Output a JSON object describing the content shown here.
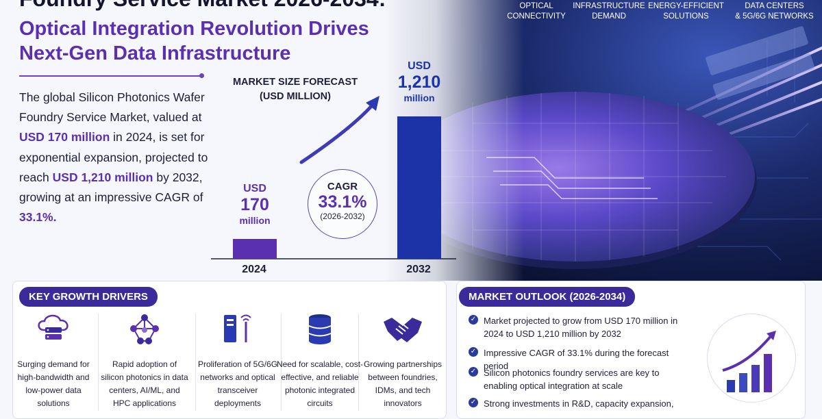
{
  "header": {
    "title_partial": "Foundry Service Market 2026-2034:",
    "subtitle": "Optical Integration Revolution Drives Next-Gen Data Infrastructure"
  },
  "topics": [
    {
      "line1": "OPTICAL",
      "line2": "CONNECTIVITY"
    },
    {
      "line1": "INFRASTRUCTURE",
      "line2": "DEMAND"
    },
    {
      "line1": "ENERGY-EFFICIENT",
      "line2": "SOLUTIONS"
    },
    {
      "line1": "DATA CENTERS",
      "line2": "& 5G/6G NETWORKS"
    }
  ],
  "intro": {
    "part1": "The global Silicon Photonics Wafer Foundry Service Market, valued at ",
    "hl1": "USD 170 million",
    "part2": " in 2024, is set for exponential expansion, projected to reach ",
    "hl2": "USD 1,210 million",
    "part3": " by 2032, growing at an impressive CAGR of ",
    "hl3": "33.1%.",
    "part4": ""
  },
  "chart_data": {
    "type": "bar",
    "title": "MARKET SIZE FORECAST (USD MILLION)",
    "categories": [
      "2024",
      "2032"
    ],
    "values": [
      170,
      1210
    ],
    "value_labels": [
      {
        "currency": "USD",
        "number": "170",
        "unit": "million"
      },
      {
        "currency": "USD",
        "number": "1,210",
        "unit": "million"
      }
    ],
    "colors": [
      "#5a2fb0",
      "#1c33a8"
    ],
    "cagr": {
      "label": "CAGR",
      "value": "33.1%",
      "period": "(2026-2032)"
    }
  },
  "drivers": {
    "heading": "KEY GROWTH DRIVERS",
    "items": [
      {
        "icon": "cloud-server-icon",
        "text": "Surging demand for high-bandwidth and low-power data solutions"
      },
      {
        "icon": "network-nodes-icon",
        "text": "Rapid adoption of silicon photonics in data centers, AI/ML, and HPC applications"
      },
      {
        "icon": "tower-antenna-icon",
        "text": "Proliferation of 5G/6G networks and optical transceiver deployments"
      },
      {
        "icon": "database-icon",
        "text": "Need for scalable, cost-effective, and reliable photonic integrated circuits"
      },
      {
        "icon": "handshake-icon",
        "text": "Growing partnerships between foundries, IDMs, and tech innovators"
      }
    ]
  },
  "outlook": {
    "heading": "MARKET OUTLOOK (2026-2034)",
    "items": [
      "Market projected to grow from USD 170 million in 2024 to USD 1,210 million by 2032",
      "Impressive CAGR of 33.1% during the forecast period",
      "Silicon photonics foundry services are key to enabling optical integration at scale",
      "Strong investments in R&D, capacity expansion,"
    ]
  },
  "colors": {
    "accent": "#5a2fb0",
    "navy": "#3a2a9a",
    "blue": "#1c33a8"
  }
}
